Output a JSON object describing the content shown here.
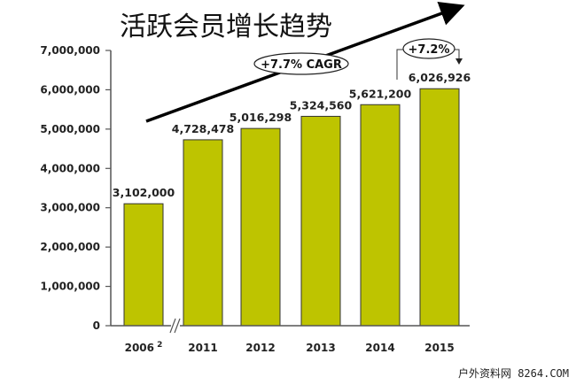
{
  "chart_data": {
    "type": "bar",
    "title": "活跃会员增长趋势",
    "categories": [
      "2006",
      "2011",
      "2012",
      "2013",
      "2014",
      "2015"
    ],
    "category_superscripts": {
      "2006": "2"
    },
    "values": [
      3102000,
      4728478,
      5016298,
      5324560,
      5621200,
      6026926
    ],
    "data_labels": [
      "3,102,000",
      "4,728,478",
      "5,016,298",
      "5,324,560",
      "5,621,200",
      "6,026,926"
    ],
    "ylim": [
      0,
      7000000
    ],
    "yticks": [
      "0",
      "1,000,000",
      "2,000,000",
      "3,000,000",
      "4,000,000",
      "5,000,000",
      "6,000,000",
      "7,000,000"
    ],
    "xlabel": "",
    "ylabel": "",
    "grid": false,
    "axis_break_after": "2006",
    "bar_color": "#bec400",
    "annotations": {
      "cagr": "+7.7% CAGR",
      "yoy": "+7.2%"
    }
  },
  "watermark": "户外资料网 8264.COM"
}
